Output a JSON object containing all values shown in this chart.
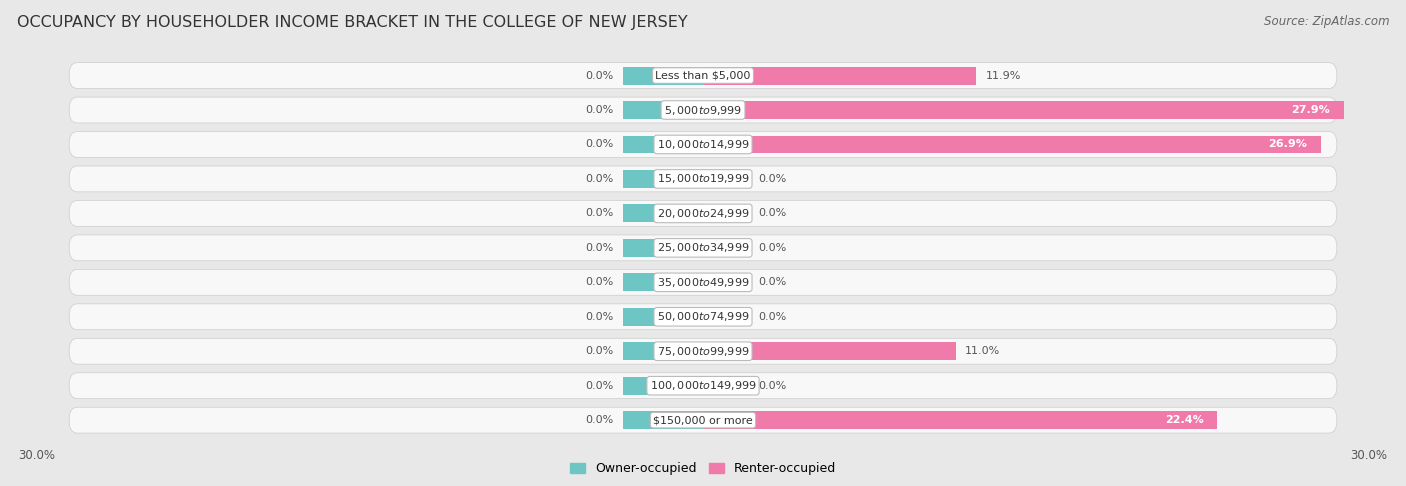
{
  "title": "OCCUPANCY BY HOUSEHOLDER INCOME BRACKET IN THE COLLEGE OF NEW JERSEY",
  "source": "Source: ZipAtlas.com",
  "categories": [
    "Less than $5,000",
    "$5,000 to $9,999",
    "$10,000 to $14,999",
    "$15,000 to $19,999",
    "$20,000 to $24,999",
    "$25,000 to $34,999",
    "$35,000 to $49,999",
    "$50,000 to $74,999",
    "$75,000 to $99,999",
    "$100,000 to $149,999",
    "$150,000 or more"
  ],
  "owner_values": [
    0.0,
    0.0,
    0.0,
    0.0,
    0.0,
    0.0,
    0.0,
    0.0,
    0.0,
    0.0,
    0.0
  ],
  "renter_values": [
    11.9,
    27.9,
    26.9,
    0.0,
    0.0,
    0.0,
    0.0,
    0.0,
    11.0,
    0.0,
    22.4
  ],
  "owner_color": "#6ec6c4",
  "renter_color": "#f07aaa",
  "renter_color_light": "#f5b8d0",
  "axis_limit": 30.0,
  "bg_color": "#e8e8e8",
  "row_bg_color": "#f8f8f8",
  "title_fontsize": 11.5,
  "source_fontsize": 8.5,
  "bar_height": 0.52,
  "owner_stub": 3.5,
  "renter_stub": 2.0,
  "label_fontsize": 8.0,
  "value_fontsize": 8.0
}
